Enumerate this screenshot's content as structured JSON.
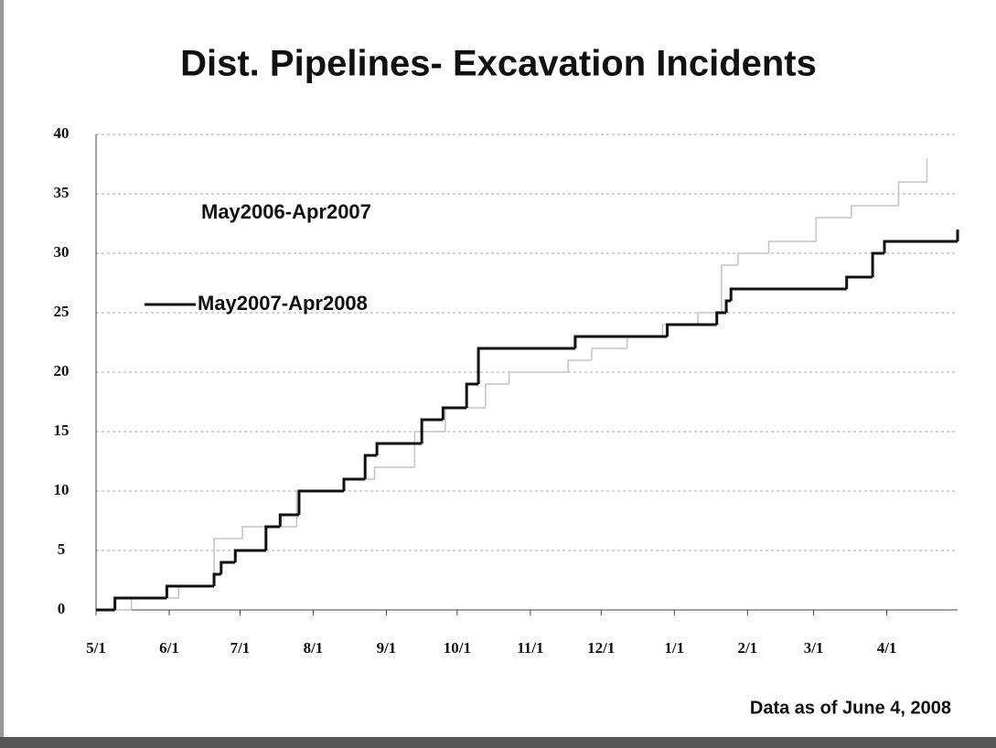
{
  "chart_data": {
    "type": "step",
    "title": "Dist. Pipelines- Excavation Incidents",
    "annotation": "Data as of June 4, 2008",
    "xlim": [
      0,
      365
    ],
    "xticks": [
      {
        "value": 0,
        "label": "5/1"
      },
      {
        "value": 31,
        "label": "6/1"
      },
      {
        "value": 61,
        "label": "7/1"
      },
      {
        "value": 92,
        "label": "8/1"
      },
      {
        "value": 123,
        "label": "9/1"
      },
      {
        "value": 153,
        "label": "10/1"
      },
      {
        "value": 184,
        "label": "11/1"
      },
      {
        "value": 214,
        "label": "12/1"
      },
      {
        "value": 245,
        "label": "1/1"
      },
      {
        "value": 276,
        "label": "2/1"
      },
      {
        "value": 304,
        "label": "3/1"
      },
      {
        "value": 335,
        "label": "4/1"
      }
    ],
    "ylim": [
      0,
      40
    ],
    "yticks": [
      0,
      5,
      10,
      15,
      20,
      25,
      30,
      35,
      40
    ],
    "grid": true,
    "series": [
      {
        "name": "May2006-Apr2007",
        "color": "#c4c4c4",
        "x": [
          0,
          15,
          35,
          50,
          62,
          85,
          105,
          118,
          135,
          148,
          165,
          175,
          200,
          210,
          225,
          240,
          255,
          265,
          272,
          285,
          305,
          320,
          340,
          352
        ],
        "values": [
          0,
          1,
          2,
          6,
          7,
          10,
          11,
          12,
          15,
          17,
          19,
          20,
          21,
          22,
          23,
          24,
          25,
          29,
          30,
          31,
          33,
          34,
          36,
          38
        ]
      },
      {
        "name": "May2007-Apr2008",
        "color": "#111111",
        "x": [
          0,
          8,
          30,
          50,
          53,
          59,
          72,
          78,
          86,
          105,
          114,
          119,
          138,
          147,
          157,
          162,
          203,
          242,
          263,
          267,
          269,
          318,
          329,
          334,
          365
        ],
        "values": [
          0,
          1,
          2,
          3,
          4,
          5,
          7,
          8,
          10,
          11,
          13,
          14,
          16,
          17,
          19,
          22,
          23,
          24,
          25,
          26,
          27,
          28,
          30,
          31,
          32
        ]
      }
    ]
  }
}
